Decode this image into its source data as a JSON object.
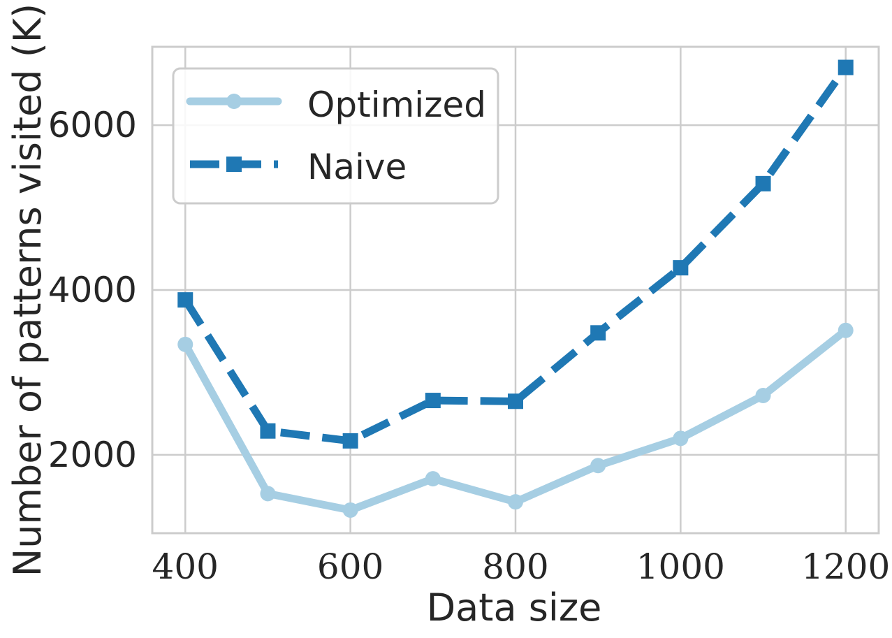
{
  "chart_data": {
    "type": "line",
    "xlabel": "Data size",
    "ylabel": "Number of patterns visited (K)",
    "x": [
      400,
      500,
      600,
      700,
      800,
      900,
      1000,
      1100,
      1200
    ],
    "xticks": [
      400,
      600,
      800,
      1000,
      1200
    ],
    "yticks": [
      2000,
      4000,
      6000
    ],
    "xlim": [
      360,
      1240
    ],
    "ylim": [
      1050,
      6950
    ],
    "grid": true,
    "legend_position": "top-left",
    "series": [
      {
        "name": "Optimized",
        "values": [
          3340,
          1530,
          1330,
          1710,
          1430,
          1870,
          2200,
          2720,
          3510
        ],
        "color": "#a6cee3",
        "line_style": "solid",
        "marker": "circle"
      },
      {
        "name": "Naive",
        "values": [
          3880,
          2290,
          2170,
          2660,
          2650,
          3480,
          4270,
          5290,
          6700
        ],
        "color": "#1f78b4",
        "line_style": "dashed",
        "marker": "square"
      }
    ]
  }
}
